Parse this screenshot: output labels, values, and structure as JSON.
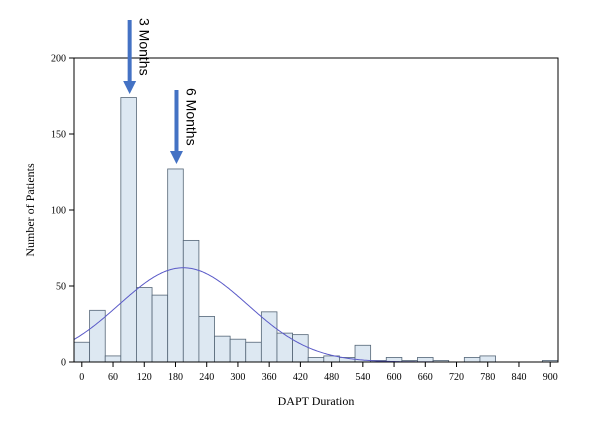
{
  "chart_data": {
    "type": "bar",
    "subtype": "histogram",
    "xlabel": "DAPT Duration",
    "ylabel": "Number of Patients",
    "xlim": [
      -15,
      915
    ],
    "ylim": [
      0,
      200
    ],
    "x_ticks": [
      0,
      60,
      120,
      180,
      240,
      300,
      360,
      420,
      480,
      540,
      600,
      660,
      720,
      780,
      840,
      900
    ],
    "y_ticks": [
      0,
      50,
      100,
      150,
      200
    ],
    "bin_width": 30,
    "bin_starts": [
      -15,
      15,
      45,
      75,
      105,
      135,
      165,
      195,
      225,
      255,
      285,
      315,
      345,
      375,
      405,
      435,
      465,
      495,
      525,
      555,
      585,
      615,
      645,
      675,
      705,
      735,
      765,
      795,
      825,
      855,
      885
    ],
    "values": [
      13,
      34,
      4,
      174,
      49,
      44,
      127,
      80,
      30,
      17,
      15,
      13,
      33,
      19,
      18,
      3,
      4,
      3,
      11,
      1,
      3,
      1,
      3,
      1,
      0,
      3,
      4,
      0,
      0,
      0,
      1
    ],
    "normal_curve": {
      "mean": 195,
      "sd": 124,
      "peak": 62
    },
    "bar_fill": "#dde8f2",
    "bar_stroke": "#556677",
    "curve_color": "#5a5ac8",
    "annotations": [
      {
        "text": "3 Months",
        "x": 90,
        "arrow_color": "#4472c4"
      },
      {
        "text": "6 Months",
        "x": 180,
        "arrow_color": "#4472c4"
      }
    ]
  }
}
